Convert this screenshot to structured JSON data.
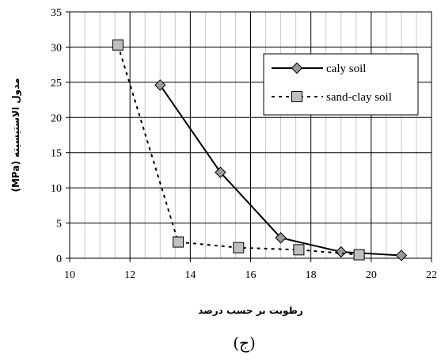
{
  "chart_data": {
    "type": "line",
    "xlabel": "رطوبت بر حسب درصد",
    "ylabel": "مدول الاستیسیته (MPa)",
    "caption": "(ج)",
    "xlim": [
      10,
      22
    ],
    "ylim": [
      0,
      35
    ],
    "x_ticks": [
      "10",
      "12",
      "14",
      "16",
      "18",
      "20",
      "22"
    ],
    "y_ticks": [
      "0",
      "5",
      "10",
      "15",
      "20",
      "25",
      "30",
      "35"
    ],
    "grid": true,
    "legend_position": "top-right",
    "series": [
      {
        "name": "caly soil",
        "marker": "diamond",
        "line": "solid",
        "color": "#000000",
        "marker_color": "#999999",
        "points": [
          [
            13,
            24.6
          ],
          [
            15,
            12.2
          ],
          [
            17,
            2.9
          ],
          [
            19,
            0.9
          ],
          [
            21,
            0.4
          ]
        ]
      },
      {
        "name": "sand-clay soil",
        "marker": "square",
        "line": "dotted",
        "color": "#000000",
        "marker_color": "#bfbfbf",
        "points": [
          [
            11.6,
            30.3
          ],
          [
            13.6,
            2.3
          ],
          [
            15.6,
            1.5
          ],
          [
            17.6,
            1.2
          ],
          [
            19.6,
            0.5
          ]
        ]
      }
    ]
  }
}
